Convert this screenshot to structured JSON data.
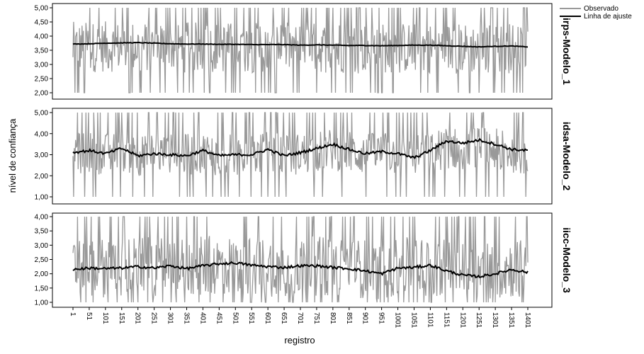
{
  "chart_data": {
    "type": "line",
    "x_title": "registro",
    "y_title": "nível de confiança",
    "x_ticks": [
      "1",
      "51",
      "101",
      "151",
      "201",
      "251",
      "301",
      "351",
      "401",
      "451",
      "501",
      "551",
      "601",
      "651",
      "701",
      "751",
      "801",
      "851",
      "901",
      "951",
      "1001",
      "1051",
      "1101",
      "1151",
      "1201",
      "1251",
      "1301",
      "1351",
      "1401"
    ],
    "x_range": [
      1,
      1401
    ],
    "legend": {
      "position": "top-right",
      "entries": [
        {
          "label": "Observado",
          "color": "#999999"
        },
        {
          "label": "Linha de ajuste",
          "color": "#000000"
        }
      ]
    },
    "series_colors": {
      "observed": "#999999",
      "fit": "#000000"
    },
    "panels": [
      {
        "label": "irps-Modelo_1",
        "yticks": [
          "2,00",
          "2,50",
          "3,00",
          "3,50",
          "4,00",
          "4,50",
          "5,00"
        ],
        "ylim": [
          2.0,
          5.0
        ],
        "observed": {
          "min": 2.0,
          "max": 5.0,
          "typical_low": 2.6,
          "typical_high": 4.4
        },
        "fit": {
          "x": [
            1,
            51,
            101,
            151,
            201,
            251,
            301,
            351,
            401,
            451,
            501,
            551,
            601,
            651,
            701,
            751,
            801,
            851,
            901,
            951,
            1001,
            1051,
            1101,
            1151,
            1201,
            1251,
            1301,
            1351,
            1401
          ],
          "y": [
            3.72,
            3.73,
            3.75,
            3.76,
            3.77,
            3.75,
            3.73,
            3.72,
            3.72,
            3.71,
            3.71,
            3.7,
            3.7,
            3.7,
            3.68,
            3.69,
            3.68,
            3.67,
            3.67,
            3.66,
            3.67,
            3.68,
            3.68,
            3.66,
            3.64,
            3.62,
            3.64,
            3.65,
            3.62
          ]
        }
      },
      {
        "label": "idsa-Modelo_2",
        "yticks": [
          "1,00",
          "2,00",
          "3,00",
          "4,00",
          "5,00"
        ],
        "ylim": [
          1.0,
          5.0
        ],
        "observed": {
          "min": 1.0,
          "max": 5.0,
          "typical_low": 2.0,
          "typical_high": 4.0
        },
        "fit": {
          "x": [
            1,
            51,
            101,
            151,
            201,
            251,
            301,
            351,
            401,
            451,
            501,
            551,
            601,
            651,
            701,
            751,
            801,
            851,
            901,
            951,
            1001,
            1051,
            1101,
            1151,
            1201,
            1251,
            1301,
            1351,
            1401
          ],
          "y": [
            3.1,
            3.2,
            3.05,
            3.3,
            2.95,
            3.05,
            3.0,
            2.95,
            3.2,
            2.95,
            3.0,
            3.0,
            3.25,
            2.95,
            3.1,
            3.3,
            3.5,
            3.25,
            3.05,
            3.15,
            3.05,
            2.85,
            3.2,
            3.65,
            3.55,
            3.7,
            3.5,
            3.25,
            3.2
          ]
        }
      },
      {
        "label": "iicc-Modelo_3",
        "yticks": [
          "1,00",
          "1,50",
          "2,00",
          "2,50",
          "3,00",
          "3,50",
          "4,00"
        ],
        "ylim": [
          1.0,
          4.0
        ],
        "observed": {
          "min": 1.0,
          "max": 4.0,
          "typical_low": 1.2,
          "typical_high": 3.3
        },
        "fit": {
          "x": [
            1,
            51,
            101,
            151,
            201,
            251,
            301,
            351,
            401,
            451,
            501,
            551,
            601,
            651,
            701,
            751,
            801,
            851,
            901,
            951,
            1001,
            1051,
            1101,
            1151,
            1201,
            1251,
            1301,
            1351,
            1401
          ],
          "y": [
            2.15,
            2.2,
            2.18,
            2.2,
            2.25,
            2.2,
            2.28,
            2.18,
            2.28,
            2.35,
            2.38,
            2.3,
            2.25,
            2.22,
            2.28,
            2.28,
            2.22,
            2.18,
            2.1,
            2.0,
            2.2,
            2.22,
            2.3,
            2.1,
            1.95,
            1.9,
            2.0,
            2.15,
            2.05
          ]
        }
      }
    ]
  }
}
